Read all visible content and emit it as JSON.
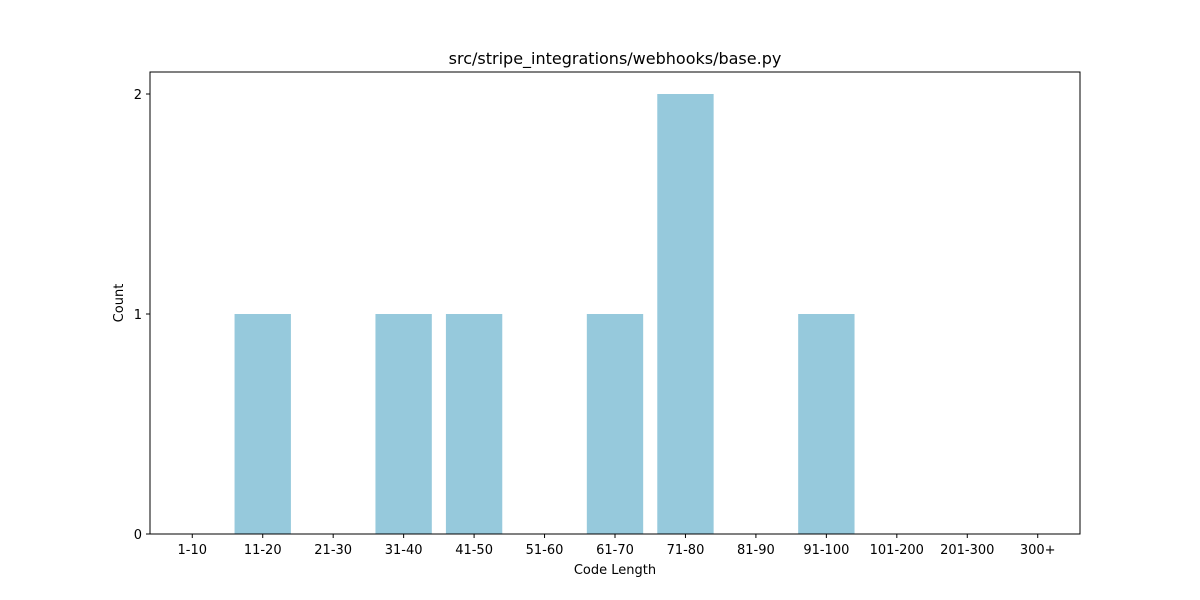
{
  "chart_data": {
    "type": "bar",
    "title": "src/stripe_integrations/webhooks/base.py",
    "xlabel": "Code Length",
    "ylabel": "Count",
    "categories": [
      "1-10",
      "11-20",
      "21-30",
      "31-40",
      "41-50",
      "51-60",
      "61-70",
      "71-80",
      "81-90",
      "91-100",
      "101-200",
      "201-300",
      "300+"
    ],
    "values": [
      0,
      1,
      0,
      1,
      1,
      0,
      1,
      2,
      0,
      1,
      0,
      0,
      0
    ],
    "yticks": [
      "0",
      "1",
      "2"
    ],
    "ylim": [
      0,
      2.1
    ],
    "grid": false,
    "bar_color": "#96c9dc"
  }
}
